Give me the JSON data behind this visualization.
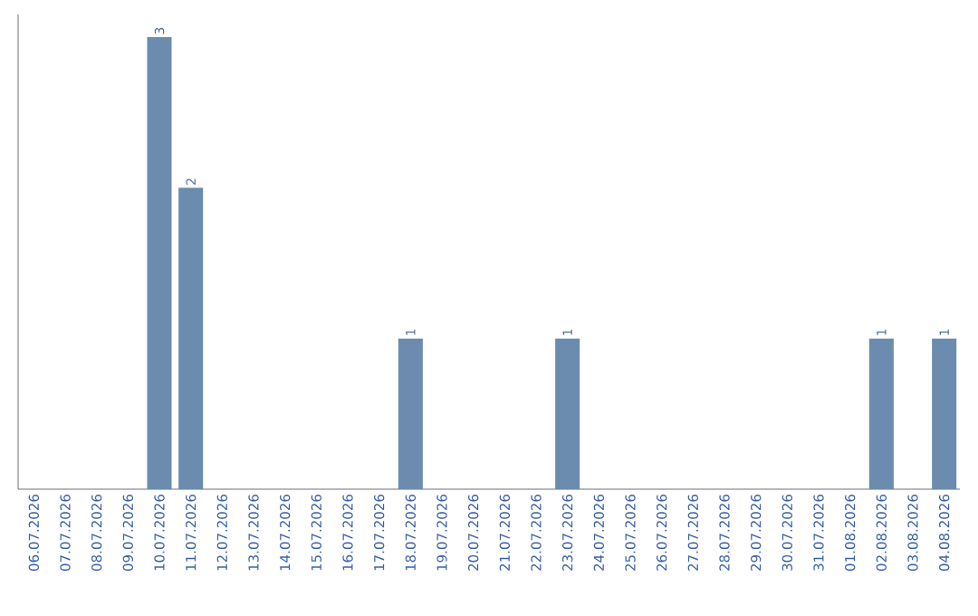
{
  "chart_data": {
    "type": "bar",
    "categories": [
      "06.07.2026",
      "07.07.2026",
      "08.07.2026",
      "09.07.2026",
      "10.07.2026",
      "11.07.2026",
      "12.07.2026",
      "13.07.2026",
      "14.07.2026",
      "15.07.2026",
      "16.07.2026",
      "17.07.2026",
      "18.07.2026",
      "19.07.2026",
      "20.07.2026",
      "21.07.2026",
      "22.07.2026",
      "23.07.2026",
      "24.07.2026",
      "25.07.2026",
      "26.07.2026",
      "27.07.2026",
      "28.07.2026",
      "29.07.2026",
      "30.07.2026",
      "31.07.2026",
      "01.08.2026",
      "02.08.2026",
      "03.08.2026",
      "04.08.2026"
    ],
    "values": [
      0,
      0,
      0,
      0,
      3,
      2,
      0,
      0,
      0,
      0,
      0,
      0,
      1,
      0,
      0,
      0,
      0,
      1,
      0,
      0,
      0,
      0,
      0,
      0,
      0,
      0,
      0,
      1,
      0,
      1
    ],
    "value_labels": [
      null,
      null,
      null,
      null,
      "3",
      "2",
      null,
      null,
      null,
      null,
      null,
      null,
      "1",
      null,
      null,
      null,
      null,
      "1",
      null,
      null,
      null,
      null,
      null,
      null,
      null,
      null,
      null,
      "1",
      null,
      "1"
    ],
    "color": "#6b8cae",
    "tick_labels": "x"
  }
}
